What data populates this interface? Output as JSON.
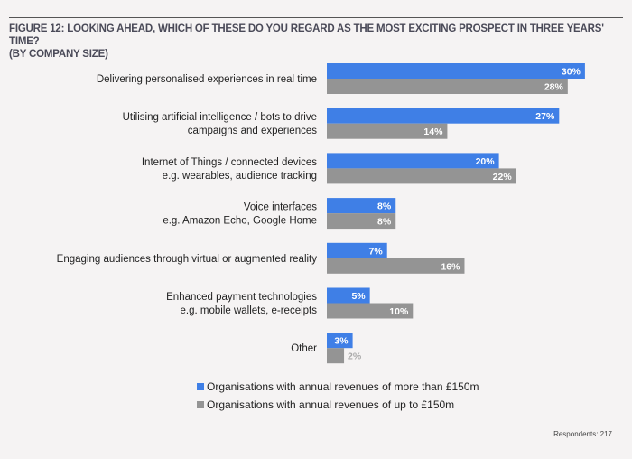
{
  "chart_data": {
    "type": "bar",
    "orientation": "horizontal",
    "title": "FIGURE 12: LOOKING AHEAD, WHICH OF THESE DO YOU REGARD AS THE MOST EXCITING PROSPECT IN THREE YEARS' TIME?",
    "subtitle": "(BY COMPANY SIZE)",
    "categories": [
      [
        "Delivering personalised experiences in real time"
      ],
      [
        "Utilising artificial intelligence / bots to drive",
        "campaigns and experiences"
      ],
      [
        "Internet of Things / connected devices",
        "e.g. wearables, audience tracking"
      ],
      [
        "Voice interfaces",
        "e.g. Amazon Echo, Google Home"
      ],
      [
        "Engaging audiences through virtual or augmented reality"
      ],
      [
        "Enhanced payment technologies",
        "e.g. mobile wallets, e-receipts"
      ],
      [
        "Other"
      ]
    ],
    "series": [
      {
        "name": "Organisations with annual revenues of more than £150m",
        "color": "#3f7fe6",
        "values": [
          30,
          27,
          20,
          8,
          7,
          5,
          3
        ]
      },
      {
        "name": "Organisations with annual revenues of up to £150m",
        "color": "#949494",
        "values": [
          28,
          14,
          22,
          8,
          16,
          10,
          2
        ]
      }
    ],
    "value_suffix": "%",
    "grid": false,
    "legend_position": "bottom-left",
    "footnote": "Respondents: 217"
  }
}
